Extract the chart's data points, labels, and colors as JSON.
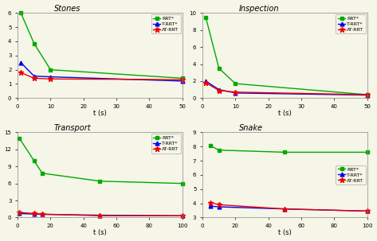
{
  "stones": {
    "title": "Stones",
    "x": [
      1,
      5,
      10,
      50
    ],
    "rrt": [
      6.0,
      3.85,
      2.0,
      1.4
    ],
    "trrt": [
      2.5,
      1.55,
      1.5,
      1.2
    ],
    "atrrt": [
      1.8,
      1.4,
      1.35,
      1.3
    ],
    "xlim": [
      0,
      50
    ],
    "ylim": [
      0,
      6
    ],
    "xticks": [
      0,
      10,
      20,
      30,
      40,
      50
    ],
    "yticks": [
      0,
      1,
      2,
      3,
      4,
      5,
      6
    ]
  },
  "inspection": {
    "title": "Inspection",
    "x": [
      1,
      5,
      10,
      50
    ],
    "rrt": [
      9.5,
      3.5,
      1.7,
      0.4
    ],
    "trrt": [
      2.0,
      1.0,
      0.6,
      0.35
    ],
    "atrrt": [
      1.8,
      0.9,
      0.7,
      0.4
    ],
    "xlim": [
      0,
      50
    ],
    "ylim": [
      0,
      10
    ],
    "xticks": [
      0,
      10,
      20,
      30,
      40,
      50
    ],
    "yticks": [
      0,
      2,
      4,
      6,
      8,
      10
    ]
  },
  "transport": {
    "title": "Transport",
    "x": [
      1,
      10,
      15,
      50,
      100
    ],
    "rrt": [
      14.0,
      10.0,
      7.8,
      6.4,
      6.0
    ],
    "trrt": [
      0.7,
      0.6,
      0.55,
      0.4,
      0.3
    ],
    "atrrt": [
      0.9,
      0.7,
      0.6,
      0.3,
      0.3
    ],
    "xlim": [
      0,
      100
    ],
    "ylim": [
      0,
      15
    ],
    "xticks": [
      0,
      20,
      40,
      60,
      80,
      100
    ],
    "yticks": [
      0,
      3,
      6,
      9,
      12,
      15
    ]
  },
  "snake": {
    "title": "Snake",
    "x": [
      5,
      10,
      50,
      100
    ],
    "rrt": [
      8.05,
      7.75,
      7.6,
      7.6
    ],
    "trrt": [
      3.8,
      3.75,
      3.6,
      3.45
    ],
    "atrrt": [
      4.05,
      3.9,
      3.6,
      3.45
    ],
    "xlim": [
      0,
      100
    ],
    "ylim": [
      3,
      9
    ],
    "xticks": [
      0,
      20,
      40,
      60,
      80,
      100
    ],
    "yticks": [
      3,
      4,
      5,
      6,
      7,
      8,
      9
    ]
  },
  "colors": {
    "rrt": "#00aa00",
    "trrt": "#0000ee",
    "atrrt": "#ee0000"
  },
  "bg_color": "#f5f5e8",
  "xlabel": "t (s)",
  "legend_labels": [
    "RRT*",
    "T-RRT*",
    "AT-RRT"
  ]
}
